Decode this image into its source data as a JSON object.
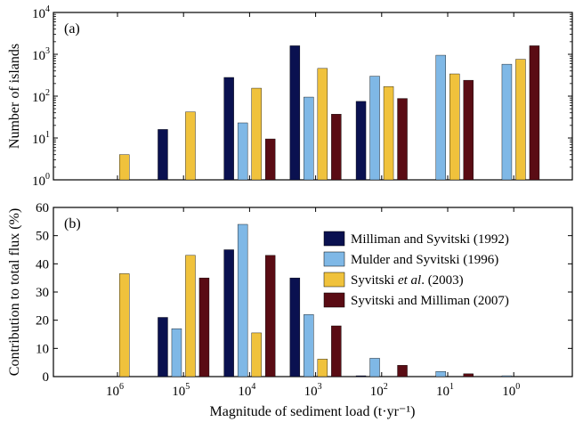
{
  "chart_data": {
    "type": "bar",
    "xlabel": "Magnitude of sediment load (t·yr⁻¹)",
    "categories": [
      {
        "base": "10",
        "exp": "6"
      },
      {
        "base": "10",
        "exp": "5"
      },
      {
        "base": "10",
        "exp": "4"
      },
      {
        "base": "10",
        "exp": "3"
      },
      {
        "base": "10",
        "exp": "2"
      },
      {
        "base": "10",
        "exp": "1"
      },
      {
        "base": "10",
        "exp": "0"
      }
    ],
    "series_colors": [
      "#0a1150",
      "#7fb8e6",
      "#f0c23c",
      "#5a0c14"
    ],
    "legend": {
      "placement": "right",
      "entries": [
        {
          "parts": [
            "Milliman and Syvitski (1992)"
          ]
        },
        {
          "parts": [
            "Mulder and Syvitski (1996)"
          ]
        },
        {
          "parts": [
            "Syvitski ",
            "et al",
            ". (2003)"
          ]
        },
        {
          "parts": [
            "Syvitski and Milliman (2007)"
          ]
        }
      ]
    },
    "panels": [
      {
        "panel_label": "(a)",
        "ylabel": "Number of islands",
        "yscale": "log",
        "ylim": [
          1,
          10000
        ],
        "yticks": [
          {
            "base": "10",
            "exp": "0",
            "value": 1
          },
          {
            "base": "10",
            "exp": "1",
            "value": 10
          },
          {
            "base": "10",
            "exp": "2",
            "value": 100
          },
          {
            "base": "10",
            "exp": "3",
            "value": 1000
          },
          {
            "base": "10",
            "exp": "4",
            "value": 10000
          }
        ],
        "series": [
          {
            "values": [
              null,
              16,
              280,
              1600,
              75,
              null,
              null
            ]
          },
          {
            "values": [
              null,
              null,
              23,
              95,
              300,
              950,
              580
            ]
          },
          {
            "values": [
              4,
              42,
              155,
              460,
              170,
              340,
              760
            ]
          },
          {
            "values": [
              null,
              null,
              9.5,
              37,
              88,
              240,
              1600
            ]
          }
        ]
      },
      {
        "panel_label": "(b)",
        "ylabel": "Contribution to total flux (%)",
        "yscale": "linear",
        "ylim": [
          0,
          60
        ],
        "yticks": [
          {
            "label": "0",
            "value": 0
          },
          {
            "label": "10",
            "value": 10
          },
          {
            "label": "20",
            "value": 20
          },
          {
            "label": "30",
            "value": 30
          },
          {
            "label": "40",
            "value": 40
          },
          {
            "label": "50",
            "value": 50
          },
          {
            "label": "60",
            "value": 60
          }
        ],
        "series": [
          {
            "values": [
              null,
              21,
              45,
              35,
              0.3,
              null,
              null
            ]
          },
          {
            "values": [
              null,
              17,
              54,
              22,
              6.5,
              1.8,
              0.3
            ]
          },
          {
            "values": [
              36.5,
              43,
              15.5,
              6.2,
              null,
              null,
              null
            ]
          },
          {
            "values": [
              null,
              35,
              43,
              18,
              4,
              1,
              null
            ]
          }
        ]
      }
    ]
  }
}
